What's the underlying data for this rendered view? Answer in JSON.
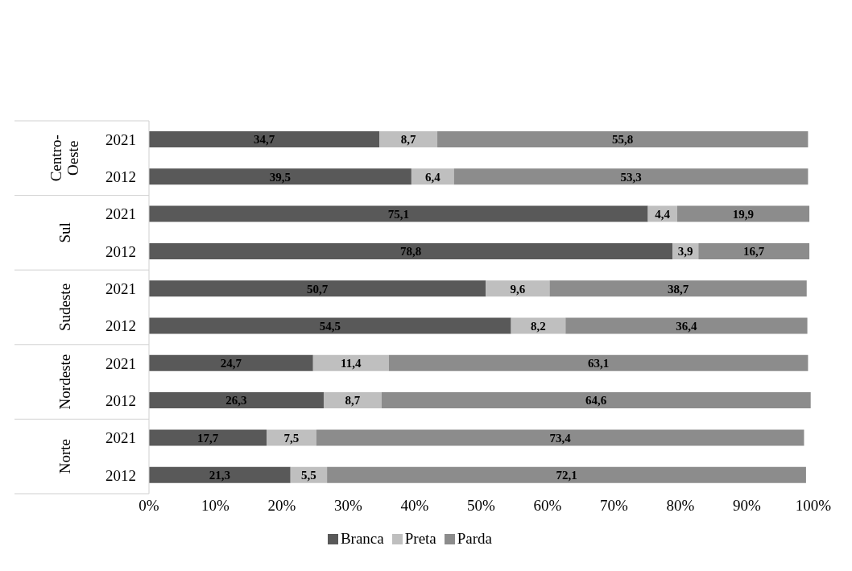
{
  "chart_data": {
    "type": "bar",
    "orientation": "horizontal",
    "stacked": true,
    "categories": [
      "2021",
      "2012",
      "2021",
      "2012",
      "2021",
      "2012",
      "2021",
      "2012",
      "2021",
      "2012"
    ],
    "annotations": [
      "Centro-Oeste",
      "Sul",
      "Sudeste",
      "Nordeste",
      "Norte"
    ],
    "series": [
      {
        "name": "Branca",
        "color": "#595959",
        "values": [
          34.7,
          39.5,
          75.1,
          78.8,
          50.7,
          54.5,
          24.7,
          26.3,
          17.7,
          21.3
        ],
        "value_labels": [
          "34,7",
          "39,5",
          "75,1",
          "78,8",
          "50,7",
          "54,5",
          "24,7",
          "26,3",
          "17,7",
          "21,3"
        ]
      },
      {
        "name": "Preta",
        "color": "#bfbfbf",
        "values": [
          8.7,
          6.4,
          4.4,
          3.9,
          9.6,
          8.2,
          11.4,
          8.7,
          7.5,
          5.5
        ],
        "value_labels": [
          "8,7",
          "6,4",
          "4,4",
          "3,9",
          "9,6",
          "8,2",
          "11,4",
          "8,7",
          "7,5",
          "5,5"
        ]
      },
      {
        "name": "Parda",
        "color": "#8c8c8c",
        "values": [
          55.8,
          53.3,
          19.9,
          16.7,
          38.7,
          36.4,
          63.1,
          64.6,
          73.4,
          72.1
        ],
        "value_labels": [
          "55,8",
          "53,3",
          "19,9",
          "16,7",
          "38,7",
          "36,4",
          "63,1",
          "64,6",
          "73,4",
          "72,1"
        ]
      }
    ],
    "xlim": [
      0,
      100
    ],
    "xticks": [
      {
        "value": 0,
        "label": "0%"
      },
      {
        "value": 10,
        "label": "10%"
      },
      {
        "value": 20,
        "label": "20%"
      },
      {
        "value": 30,
        "label": "30%"
      },
      {
        "value": 40,
        "label": "40%"
      },
      {
        "value": 50,
        "label": "50%"
      },
      {
        "value": 60,
        "label": "60%"
      },
      {
        "value": 70,
        "label": "70%"
      },
      {
        "value": 80,
        "label": "80%"
      },
      {
        "value": 90,
        "label": "90%"
      },
      {
        "value": 100,
        "label": "100%"
      }
    ],
    "grid": false,
    "legend": "bottom"
  }
}
